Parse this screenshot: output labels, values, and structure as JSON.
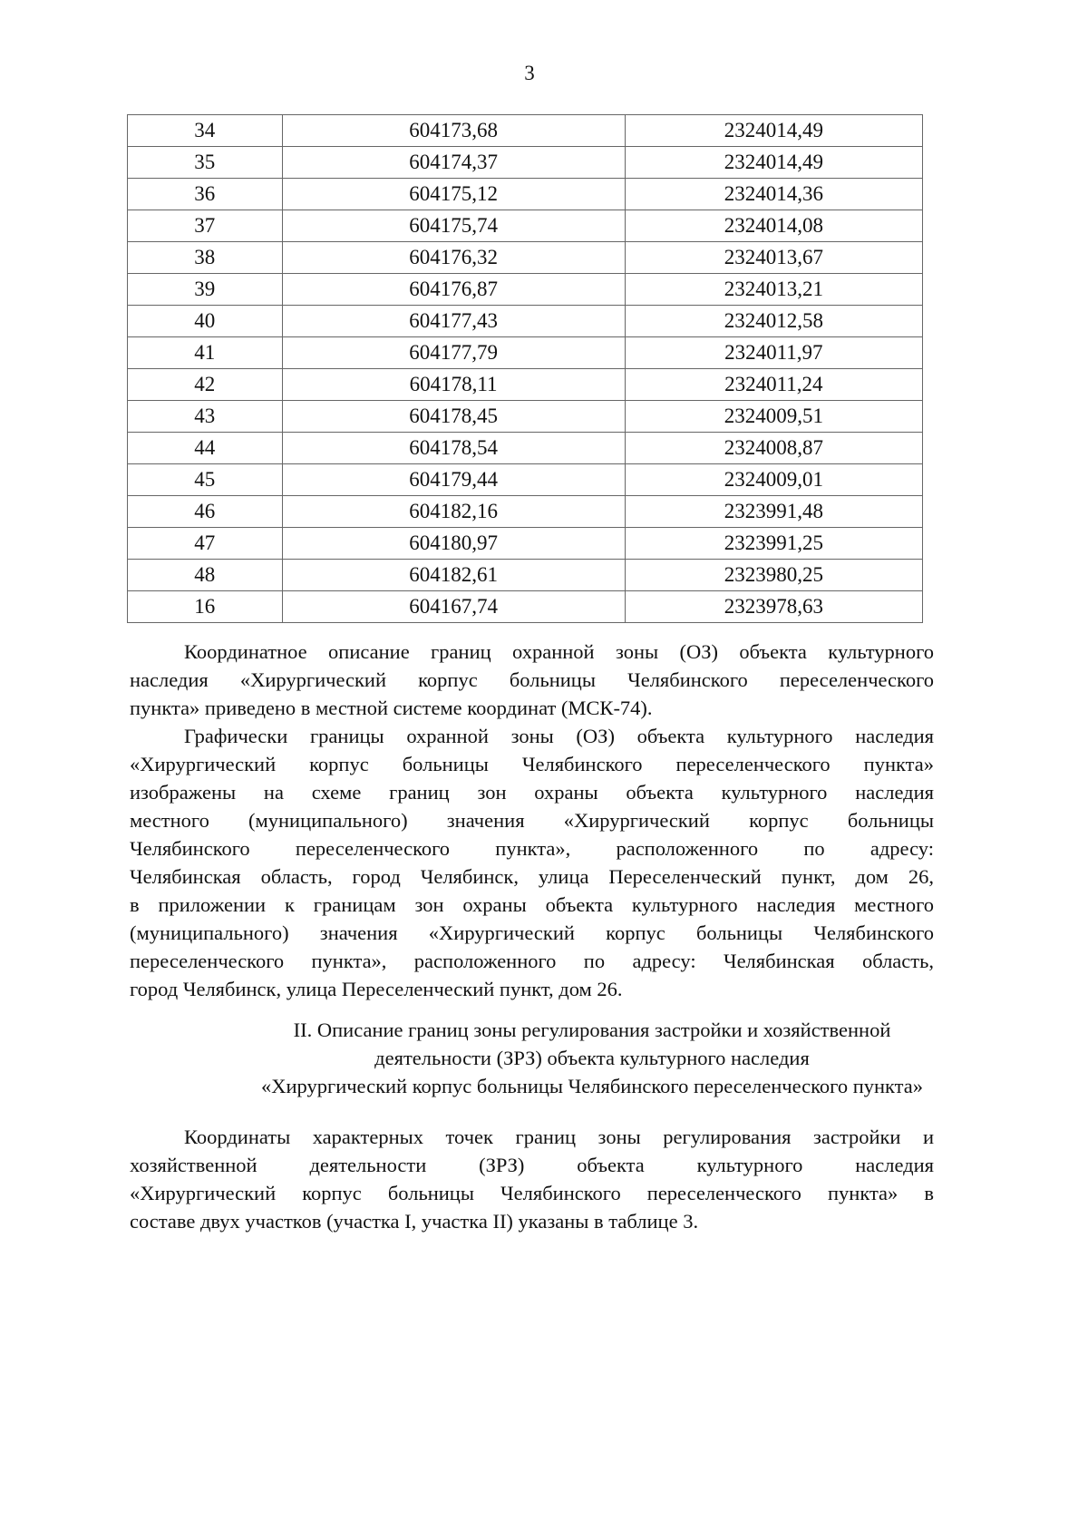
{
  "page_number": "3",
  "table": {
    "rows": [
      [
        "34",
        "604173,68",
        "2324014,49"
      ],
      [
        "35",
        "604174,37",
        "2324014,49"
      ],
      [
        "36",
        "604175,12",
        "2324014,36"
      ],
      [
        "37",
        "604175,74",
        "2324014,08"
      ],
      [
        "38",
        "604176,32",
        "2324013,67"
      ],
      [
        "39",
        "604176,87",
        "2324013,21"
      ],
      [
        "40",
        "604177,43",
        "2324012,58"
      ],
      [
        "41",
        "604177,79",
        "2324011,97"
      ],
      [
        "42",
        "604178,11",
        "2324011,24"
      ],
      [
        "43",
        "604178,45",
        "2324009,51"
      ],
      [
        "44",
        "604178,54",
        "2324008,87"
      ],
      [
        "45",
        "604179,44",
        "2324009,01"
      ],
      [
        "46",
        "604182,16",
        "2323991,48"
      ],
      [
        "47",
        "604180,97",
        "2323991,25"
      ],
      [
        "48",
        "604182,61",
        "2323980,25"
      ],
      [
        "16",
        "604167,74",
        "2323978,63"
      ]
    ]
  },
  "paragraphs": [
    {
      "lines": [
        "Координатное описание границ охранной зоны (ОЗ) объекта культурного",
        "наследия «Хирургический корпус больницы Челябинского переселенческого",
        "пункта» приведено в местной системе координат (МСК-74)."
      ]
    },
    {
      "lines": [
        "Графически границы охранной зоны (ОЗ) объекта культурного наследия",
        "«Хирургический корпус больницы Челябинского переселенческого пункта»",
        "изображены на схеме границ зон охраны объекта культурного наследия",
        "местного (муниципального) значения «Хирургический корпус больницы",
        "Челябинского переселенческого пункта», расположенного по адресу:",
        "Челябинская область, город Челябинск, улица Переселенческий пункт, дом 26,",
        "в приложении к границам зон охраны объекта культурного наследия местного",
        "(муниципального) значения «Хирургический корпус больницы Челябинского",
        "переселенческого пункта», расположенного по адресу: Челябинская область,",
        "город Челябинск, улица Переселенческий пункт, дом 26."
      ]
    },
    {
      "lines": [
        "Координаты характерных точек границ зоны регулирования застройки и",
        "хозяйственной деятельности (ЗРЗ) объекта культурного наследия",
        "«Хирургический корпус больницы Челябинского переселенческого пункта» в",
        "составе двух участков (участка I, участка II) указаны в таблице 3."
      ]
    }
  ],
  "section_heading": [
    "II. Описание границ зоны регулирования застройки и хозяйственной",
    "деятельности (ЗРЗ) объекта культурного наследия",
    "«Хирургический корпус больницы Челябинского переселенческого пункта»"
  ]
}
